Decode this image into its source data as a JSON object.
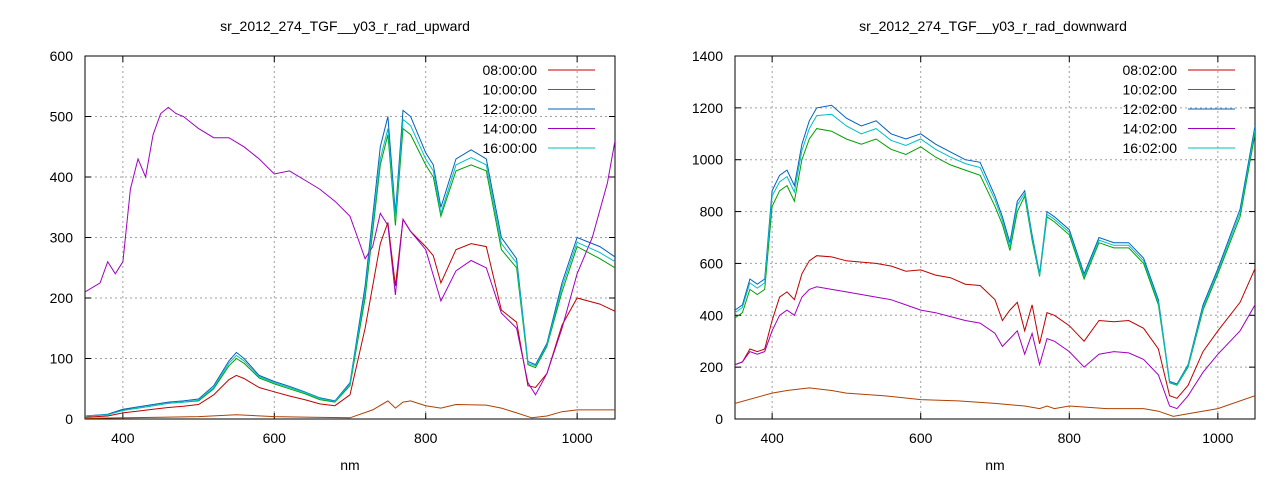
{
  "chart_data": [
    {
      "type": "line",
      "title": "sr_2012_274_TGF__y03_r_rad_upward",
      "xlabel": "nm",
      "ylabel": "",
      "xlim": [
        350,
        1050
      ],
      "ylim": [
        0,
        600
      ],
      "xticks": [
        400,
        600,
        800,
        1000
      ],
      "xtick_labels": [
        "400",
        "600",
        "800",
        "1000"
      ],
      "yticks": [
        0,
        100,
        200,
        300,
        400,
        500,
        600
      ],
      "ytick_labels": [
        "0",
        "100",
        "200",
        "300",
        "400",
        "500",
        "600"
      ],
      "grid": true,
      "legend_position": "top-right",
      "series": [
        {
          "name": "08:00:00",
          "color": "#c00000",
          "x": [
            350,
            380,
            400,
            420,
            440,
            460,
            480,
            500,
            520,
            540,
            550,
            560,
            580,
            600,
            620,
            640,
            660,
            680,
            700,
            720,
            740,
            750,
            760,
            770,
            780,
            800,
            810,
            820,
            840,
            860,
            880,
            900,
            920,
            935,
            945,
            960,
            980,
            1000,
            1030,
            1050
          ],
          "y": [
            3,
            5,
            10,
            13,
            16,
            19,
            21,
            24,
            40,
            65,
            72,
            67,
            52,
            45,
            38,
            32,
            25,
            22,
            40,
            150,
            290,
            325,
            220,
            330,
            310,
            285,
            270,
            225,
            280,
            290,
            285,
            180,
            160,
            55,
            52,
            75,
            155,
            200,
            190,
            178
          ]
        },
        {
          "name": "10:00:00",
          "color": "#00a000",
          "x": [
            350,
            380,
            400,
            420,
            440,
            460,
            480,
            500,
            520,
            540,
            550,
            560,
            580,
            600,
            620,
            640,
            660,
            680,
            700,
            720,
            740,
            750,
            760,
            770,
            780,
            800,
            810,
            820,
            840,
            860,
            880,
            900,
            920,
            935,
            945,
            960,
            980,
            1000,
            1030,
            1050
          ],
          "y": [
            5,
            7,
            15,
            18,
            22,
            26,
            28,
            30,
            50,
            88,
            100,
            92,
            68,
            58,
            50,
            42,
            32,
            28,
            55,
            200,
            420,
            470,
            320,
            480,
            470,
            420,
            400,
            335,
            410,
            420,
            410,
            280,
            250,
            90,
            85,
            120,
            210,
            285,
            265,
            250
          ]
        },
        {
          "name": "12:00:00",
          "color": "#0060c0",
          "x": [
            350,
            380,
            400,
            420,
            440,
            460,
            480,
            500,
            520,
            540,
            550,
            560,
            580,
            600,
            620,
            640,
            660,
            680,
            700,
            720,
            740,
            750,
            760,
            770,
            780,
            800,
            810,
            820,
            840,
            860,
            880,
            900,
            920,
            935,
            945,
            960,
            980,
            1000,
            1030,
            1050
          ],
          "y": [
            5,
            8,
            16,
            20,
            24,
            28,
            30,
            33,
            55,
            96,
            110,
            100,
            72,
            62,
            54,
            45,
            35,
            30,
            60,
            220,
            450,
            500,
            340,
            510,
            500,
            440,
            420,
            350,
            430,
            445,
            430,
            300,
            265,
            95,
            90,
            125,
            225,
            300,
            285,
            268
          ]
        },
        {
          "name": "14:00:00",
          "color": "#a000c0",
          "x": [
            350,
            370,
            380,
            390,
            400,
            410,
            420,
            430,
            440,
            450,
            460,
            470,
            480,
            500,
            520,
            540,
            560,
            580,
            600,
            620,
            640,
            660,
            680,
            700,
            710,
            720,
            730,
            740,
            750,
            760,
            770,
            780,
            800,
            820,
            840,
            860,
            880,
            900,
            920,
            935,
            945,
            960,
            980,
            1000,
            1020,
            1040,
            1050
          ],
          "y": [
            210,
            225,
            260,
            240,
            260,
            380,
            430,
            400,
            470,
            505,
            515,
            505,
            500,
            480,
            465,
            465,
            450,
            430,
            405,
            410,
            395,
            380,
            360,
            335,
            300,
            265,
            285,
            340,
            320,
            205,
            330,
            310,
            280,
            195,
            245,
            262,
            250,
            175,
            150,
            60,
            40,
            75,
            150,
            240,
            300,
            390,
            460
          ]
        },
        {
          "name": "16:00:00",
          "color": "#00c0c0",
          "x": [
            350,
            380,
            400,
            420,
            440,
            460,
            480,
            500,
            520,
            540,
            550,
            560,
            580,
            600,
            620,
            640,
            660,
            680,
            700,
            720,
            740,
            750,
            760,
            770,
            780,
            800,
            810,
            820,
            840,
            860,
            880,
            900,
            920,
            935,
            945,
            960,
            980,
            1000,
            1030,
            1050
          ],
          "y": [
            5,
            7,
            14,
            18,
            22,
            26,
            28,
            31,
            52,
            92,
            105,
            96,
            70,
            60,
            52,
            44,
            34,
            29,
            58,
            210,
            430,
            480,
            330,
            495,
            485,
            430,
            410,
            340,
            420,
            432,
            420,
            290,
            258,
            92,
            88,
            122,
            218,
            292,
            275,
            260
          ]
        },
        {
          "name": "",
          "color": "#b04000",
          "x": [
            350,
            400,
            450,
            500,
            550,
            600,
            650,
            700,
            730,
            750,
            760,
            770,
            780,
            800,
            820,
            840,
            880,
            900,
            920,
            940,
            960,
            980,
            1000,
            1050
          ],
          "y": [
            1,
            2,
            3,
            4,
            7,
            4,
            3,
            2,
            15,
            30,
            18,
            28,
            30,
            22,
            18,
            24,
            23,
            18,
            10,
            2,
            5,
            12,
            15,
            15
          ]
        }
      ]
    },
    {
      "type": "line",
      "title": "sr_2012_274_TGF__y03_r_rad_downward",
      "xlabel": "nm",
      "ylabel": "",
      "xlim": [
        350,
        1050
      ],
      "ylim": [
        0,
        1400
      ],
      "xticks": [
        400,
        600,
        800,
        1000
      ],
      "xtick_labels": [
        "400",
        "600",
        "800",
        "1000"
      ],
      "yticks": [
        0,
        200,
        400,
        600,
        800,
        1000,
        1200,
        1400
      ],
      "ytick_labels": [
        "0",
        "200",
        "400",
        "600",
        "800",
        "1000",
        "1200",
        "1400"
      ],
      "grid": true,
      "legend_position": "top-right",
      "series": [
        {
          "name": "08:02:00",
          "color": "#c00000",
          "x": [
            350,
            360,
            370,
            380,
            390,
            400,
            410,
            420,
            430,
            440,
            450,
            460,
            480,
            500,
            520,
            540,
            560,
            580,
            600,
            620,
            640,
            660,
            680,
            700,
            710,
            720,
            730,
            740,
            750,
            760,
            770,
            780,
            800,
            820,
            840,
            860,
            880,
            900,
            920,
            935,
            945,
            960,
            980,
            1000,
            1030,
            1050
          ],
          "y": [
            210,
            220,
            270,
            260,
            270,
            380,
            470,
            490,
            460,
            560,
            610,
            630,
            625,
            610,
            605,
            600,
            590,
            570,
            575,
            555,
            545,
            520,
            515,
            460,
            380,
            420,
            450,
            340,
            440,
            290,
            410,
            400,
            360,
            300,
            380,
            375,
            380,
            350,
            270,
            90,
            80,
            130,
            260,
            340,
            450,
            580
          ]
        },
        {
          "name": "10:02:00",
          "color": "#00a000",
          "x": [
            350,
            360,
            370,
            380,
            390,
            400,
            410,
            420,
            430,
            440,
            450,
            460,
            480,
            500,
            520,
            540,
            560,
            580,
            600,
            620,
            640,
            660,
            680,
            700,
            710,
            720,
            730,
            740,
            750,
            760,
            770,
            780,
            800,
            820,
            840,
            860,
            880,
            900,
            920,
            935,
            945,
            960,
            980,
            1000,
            1030,
            1050
          ],
          "y": [
            390,
            410,
            500,
            480,
            500,
            820,
            880,
            900,
            840,
            1000,
            1080,
            1120,
            1110,
            1080,
            1060,
            1080,
            1040,
            1020,
            1050,
            1010,
            980,
            960,
            940,
            820,
            750,
            650,
            800,
            860,
            690,
            550,
            780,
            760,
            710,
            540,
            680,
            660,
            660,
            600,
            440,
            140,
            130,
            200,
            420,
            560,
            780,
            1100
          ]
        },
        {
          "name": "12:02:00",
          "color": "#0060c0",
          "x": [
            350,
            360,
            370,
            380,
            390,
            400,
            410,
            420,
            430,
            440,
            450,
            460,
            480,
            500,
            520,
            540,
            560,
            580,
            600,
            620,
            640,
            660,
            680,
            700,
            710,
            720,
            730,
            740,
            750,
            760,
            770,
            780,
            800,
            820,
            840,
            860,
            880,
            900,
            920,
            935,
            945,
            960,
            980,
            1000,
            1030,
            1050
          ],
          "y": [
            420,
            440,
            540,
            520,
            540,
            880,
            940,
            960,
            900,
            1060,
            1150,
            1200,
            1210,
            1160,
            1130,
            1150,
            1100,
            1080,
            1100,
            1060,
            1030,
            1000,
            990,
            860,
            780,
            680,
            840,
            880,
            710,
            560,
            800,
            780,
            730,
            560,
            700,
            680,
            680,
            620,
            460,
            145,
            135,
            210,
            440,
            580,
            810,
            1130
          ]
        },
        {
          "name": "14:02:00",
          "color": "#a000c0",
          "x": [
            350,
            360,
            370,
            380,
            390,
            400,
            410,
            420,
            430,
            440,
            450,
            460,
            480,
            500,
            520,
            540,
            560,
            580,
            600,
            620,
            640,
            660,
            680,
            700,
            710,
            720,
            730,
            740,
            750,
            760,
            770,
            780,
            800,
            820,
            840,
            860,
            880,
            900,
            920,
            935,
            945,
            960,
            980,
            1000,
            1030,
            1050
          ],
          "y": [
            210,
            220,
            260,
            250,
            260,
            340,
            400,
            420,
            400,
            470,
            500,
            510,
            500,
            490,
            480,
            470,
            460,
            440,
            420,
            410,
            395,
            380,
            370,
            330,
            280,
            310,
            340,
            250,
            330,
            210,
            310,
            300,
            260,
            200,
            250,
            260,
            255,
            230,
            170,
            50,
            40,
            90,
            180,
            250,
            340,
            440
          ]
        },
        {
          "name": "16:02:00",
          "color": "#00c0c0",
          "x": [
            350,
            360,
            370,
            380,
            390,
            400,
            410,
            420,
            430,
            440,
            450,
            460,
            480,
            500,
            520,
            540,
            560,
            580,
            600,
            620,
            640,
            660,
            680,
            700,
            710,
            720,
            730,
            740,
            750,
            760,
            770,
            780,
            800,
            820,
            840,
            860,
            880,
            900,
            920,
            935,
            945,
            960,
            980,
            1000,
            1030,
            1050
          ],
          "y": [
            410,
            430,
            525,
            505,
            525,
            860,
            915,
            935,
            875,
            1035,
            1120,
            1170,
            1175,
            1130,
            1100,
            1120,
            1075,
            1055,
            1080,
            1040,
            1010,
            985,
            970,
            845,
            765,
            665,
            825,
            870,
            700,
            555,
            790,
            770,
            720,
            550,
            690,
            670,
            670,
            610,
            450,
            142,
            132,
            205,
            430,
            570,
            795,
            1115
          ]
        },
        {
          "name": "",
          "color": "#b04000",
          "x": [
            350,
            400,
            420,
            450,
            480,
            500,
            550,
            600,
            650,
            700,
            740,
            760,
            770,
            780,
            800,
            850,
            900,
            920,
            940,
            960,
            1000,
            1050
          ],
          "y": [
            60,
            100,
            110,
            120,
            110,
            100,
            90,
            75,
            70,
            60,
            50,
            40,
            50,
            40,
            50,
            40,
            40,
            30,
            10,
            20,
            40,
            90
          ]
        }
      ]
    }
  ]
}
